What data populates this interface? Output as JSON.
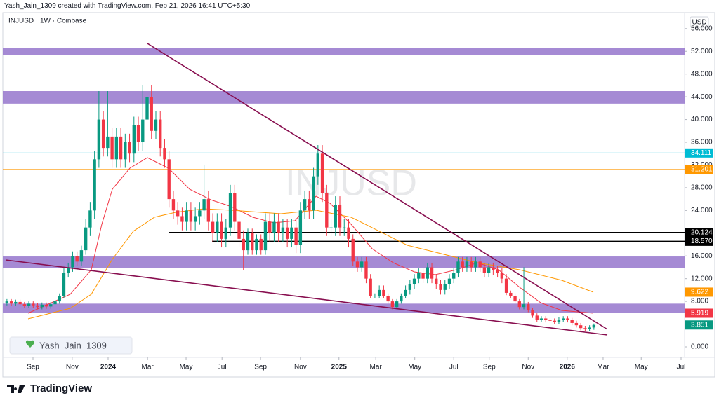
{
  "header": {
    "author_line": "Yash_Jain_1309 created with TradingView.com, Feb 21, 2026 16:41 UTC+5:30",
    "symbol": "INJUSD · 1W · Coinbase",
    "currency": "USD",
    "watermark": "INJUSD",
    "badge": "Yash_Jain_1309",
    "brand": "TradingView"
  },
  "chart_data": {
    "type": "candlestick",
    "open": [
      7.7,
      8.0,
      7.6,
      7.9,
      7.5,
      7.2,
      7.6,
      7.3,
      7.0,
      7.4,
      7.1,
      7.5,
      8.0,
      9.0,
      13,
      14,
      16,
      15,
      17,
      21,
      24,
      33,
      40,
      35,
      37,
      33,
      37,
      33,
      36,
      34,
      39,
      36,
      40,
      44,
      38,
      40,
      35,
      33,
      26,
      24,
      23,
      22,
      24,
      22,
      23,
      24,
      26,
      22,
      20,
      22,
      19,
      21,
      27,
      22,
      19,
      17,
      20,
      17,
      19,
      17,
      22,
      20,
      22,
      20,
      21,
      19,
      21,
      18,
      24,
      26,
      24,
      30,
      34,
      27,
      21,
      21,
      25,
      21,
      21,
      19,
      15,
      14,
      15,
      12,
      9,
      9,
      10,
      9,
      8,
      7,
      8,
      9,
      10,
      11,
      12,
      13,
      12,
      14,
      12,
      11,
      10,
      11,
      12,
      13,
      15,
      14,
      15,
      14,
      15,
      14,
      13,
      14,
      13.5,
      13,
      12,
      9.5,
      9,
      8,
      7,
      7.5,
      6.5,
      5.5,
      4.8,
      5.0,
      4.7,
      4.6,
      4.4,
      4.8,
      5.0,
      4.7,
      4.2,
      3.8,
      3.3,
      3.2,
      3.4
    ],
    "high": [
      8.4,
      8.4,
      8.3,
      8.3,
      7.9,
      8.0,
      8.0,
      7.7,
      7.8,
      7.8,
      7.9,
      8.4,
      9.4,
      13.8,
      14.8,
      16.8,
      16.8,
      17.8,
      22.5,
      25.5,
      34.5,
      45,
      41.5,
      45,
      38.5,
      38.5,
      38.5,
      37.5,
      37.5,
      40.5,
      40.5,
      46,
      53.5,
      46,
      41.5,
      41.5,
      36.5,
      34.5,
      27.5,
      25.5,
      24.5,
      25.5,
      25.5,
      24.5,
      25.5,
      32,
      27.5,
      23.5,
      23.5,
      23.5,
      22.5,
      28.5,
      28.5,
      23.5,
      20.5,
      20.8,
      20.8,
      19.8,
      19.8,
      23.5,
      23.5,
      23.5,
      23.5,
      22.5,
      22.5,
      22.5,
      22.5,
      25.5,
      27.5,
      27.5,
      31.5,
      35.5,
      35.5,
      28.5,
      22.5,
      26.5,
      26.5,
      22.5,
      22.5,
      19.8,
      15.8,
      15.8,
      15.8,
      12.8,
      9.4,
      10.8,
      10.8,
      9.4,
      8.4,
      8.4,
      9.4,
      10.8,
      11.8,
      12.8,
      13.8,
      13.8,
      14.8,
      14.8,
      12.8,
      11.8,
      11.8,
      12.8,
      13.8,
      15.8,
      15.8,
      15.8,
      15.8,
      15.8,
      15.8,
      14.8,
      14.8,
      14.8,
      14.3,
      13.8,
      12.8,
      9.9,
      9.4,
      8.4,
      14,
      7.9,
      6.9,
      5.9,
      5.4,
      5.4,
      5.1,
      5.0,
      5.2,
      5.4,
      5.4,
      5.1,
      4.6,
      4.2,
      3.7,
      3.8,
      4.1
    ],
    "low": [
      7.3,
      7.2,
      7.2,
      7.1,
      6.8,
      6.8,
      6.9,
      6.6,
      6.6,
      6.7,
      6.7,
      7.1,
      7.6,
      8.6,
      12.2,
      13.2,
      14.2,
      14.2,
      16.2,
      19.5,
      22.5,
      31.5,
      33.5,
      33.5,
      31.5,
      31.5,
      31.5,
      31.5,
      32.5,
      32.5,
      34.5,
      34.5,
      38.5,
      36.5,
      36.5,
      33.5,
      31.5,
      24.5,
      22.5,
      21.5,
      20.5,
      20.5,
      20.5,
      20.5,
      21.5,
      22.5,
      20.5,
      18.5,
      18.5,
      17.5,
      17.5,
      19.5,
      20.5,
      17.5,
      13.5,
      16.2,
      16.2,
      16.2,
      16.2,
      16.2,
      18.5,
      18.5,
      18.5,
      18.5,
      17.5,
      17.5,
      16.5,
      16.5,
      22.5,
      22.5,
      22.5,
      28.5,
      25.5,
      19.5,
      19.5,
      19.5,
      19.5,
      19.5,
      17.5,
      14.2,
      13.2,
      13.2,
      11.2,
      8.6,
      8.6,
      8.6,
      8.6,
      7.6,
      6.6,
      6.6,
      7.6,
      8.6,
      9.2,
      10.2,
      11.2,
      11.2,
      11.2,
      11.2,
      10.2,
      9.2,
      9.2,
      10.2,
      11.2,
      12.2,
      13.2,
      13.2,
      13.2,
      13.2,
      13.2,
      12.2,
      12.2,
      12.7,
      12.2,
      11.2,
      9.1,
      8.6,
      7.6,
      6.6,
      6.6,
      6.1,
      5.1,
      4.4,
      4.4,
      4.3,
      4.2,
      4.0,
      4.0,
      4.4,
      4.3,
      3.8,
      3.4,
      2.9,
      2.8,
      2.8,
      3.0
    ],
    "close": [
      8.0,
      7.6,
      7.9,
      7.5,
      7.2,
      7.6,
      7.3,
      7.0,
      7.4,
      7.1,
      7.5,
      8.0,
      9.0,
      13,
      14,
      16,
      15,
      17,
      21,
      24,
      33,
      40,
      35,
      37,
      33,
      37,
      33,
      36,
      34,
      39,
      36,
      40,
      44,
      38,
      40,
      35,
      33,
      26,
      24,
      23,
      22,
      24,
      22,
      23,
      24,
      26,
      22,
      20,
      22,
      19,
      21,
      27,
      22,
      19,
      17,
      20,
      17,
      19,
      17,
      22,
      20,
      22,
      20,
      21,
      19,
      21,
      18,
      24,
      26,
      24,
      30,
      34,
      27,
      21,
      21,
      25,
      21,
      21,
      19,
      15,
      14,
      15,
      12,
      9,
      9,
      10,
      9,
      8,
      7,
      8,
      9,
      10,
      11,
      12,
      13,
      12,
      14,
      12,
      11,
      10,
      11,
      12,
      13,
      15,
      14,
      15,
      14,
      15,
      14,
      13,
      14,
      13.5,
      13,
      12,
      9.5,
      9,
      8,
      7,
      7.5,
      6.5,
      5.5,
      4.8,
      5.0,
      4.7,
      4.6,
      4.4,
      4.8,
      5.0,
      4.7,
      4.2,
      3.8,
      3.3,
      3.2,
      3.4,
      3.851
    ],
    "up_color": "#089981",
    "down_color": "#f23645",
    "xlim": [
      -0.3,
      154.7
    ],
    "ylim": [
      -1.85,
      57.7
    ],
    "xticks": [
      {
        "value": 5.95,
        "label": "Sep"
      },
      {
        "value": 14.9,
        "label": "Nov"
      },
      {
        "value": 23.1,
        "label": "2024"
      },
      {
        "value": 32.1,
        "label": "Mar"
      },
      {
        "value": 40.9,
        "label": "May"
      },
      {
        "value": 49.1,
        "label": "Jul"
      },
      {
        "value": 57.9,
        "label": "Sep"
      },
      {
        "value": 67.0,
        "label": "Nov"
      },
      {
        "value": 75.8,
        "label": "2025"
      },
      {
        "value": 84.2,
        "label": "Mar"
      },
      {
        "value": 93.1,
        "label": "May"
      },
      {
        "value": 102.0,
        "label": "Jul"
      },
      {
        "value": 110.1,
        "label": "Sep"
      },
      {
        "value": 119.0,
        "label": "Nov"
      },
      {
        "value": 127.9,
        "label": "2026"
      },
      {
        "value": 136.1,
        "label": "Mar"
      },
      {
        "value": 144.8,
        "label": "May"
      },
      {
        "value": 153.9,
        "label": "Jul"
      }
    ],
    "yticks": [
      {
        "value": 0,
        "label": "0.000"
      },
      {
        "value": 8,
        "label": "8.000"
      },
      {
        "value": 12,
        "label": "12.000"
      },
      {
        "value": 16,
        "label": "16.000"
      },
      {
        "value": 24,
        "label": "24.000"
      },
      {
        "value": 28,
        "label": "28.000"
      },
      {
        "value": 32,
        "label": "32.000"
      },
      {
        "value": 36,
        "label": "36.000"
      },
      {
        "value": 40,
        "label": "40.000"
      },
      {
        "value": 44,
        "label": "44.000"
      },
      {
        "value": 48,
        "label": "48.000"
      },
      {
        "value": 52,
        "label": "52.000"
      },
      {
        "value": 56,
        "label": "56.000"
      }
    ],
    "zone_color": "#9575cd",
    "zones": [
      {
        "low": 51.3,
        "high": 52.6
      },
      {
        "low": 42.8,
        "high": 45.0
      },
      {
        "low": 13.9,
        "high": 15.9
      },
      {
        "low": 6.0,
        "high": 7.6
      }
    ],
    "levels": [
      {
        "value": 34.111,
        "label": "34.111",
        "color": "#00bcd4"
      },
      {
        "value": 31.201,
        "label": "31.201",
        "color": "#ff9800"
      },
      {
        "value": 20.124,
        "label": "20.124",
        "color": "#000000",
        "start": 37.05
      },
      {
        "value": 18.57,
        "label": "18.570",
        "color": "#000000",
        "start": 46.83
      }
    ],
    "trendline_color": "#880e4f",
    "trendlines": [
      {
        "x": [
          32.08,
          137.07
        ],
        "values": [
          53.39,
          3.08
        ]
      },
      {
        "x": [
          -0.3,
          137.07
        ],
        "values": [
          15.29,
          2.1
        ]
      }
    ],
    "moving_averages": [
      {
        "color": "#f23645",
        "x": [
          4.83,
          14.45,
          19.26,
          21.66,
          24.06,
          28.07,
          32.08,
          36.89,
          41.7,
          46.51,
          51.32,
          56.13,
          60.94,
          65.75,
          70.56,
          73.76,
          78.57,
          83.38,
          88.19,
          93.0,
          97.8,
          102.61,
          107.42,
          112.23,
          117.03,
          121.84,
          126.65,
          133.87
        ],
        "values": [
          5.92,
          9.25,
          13.56,
          21.58,
          27.74,
          31.44,
          33.29,
          31.44,
          27.74,
          25.89,
          24.66,
          22.81,
          21.82,
          22.19,
          26.51,
          25.28,
          21.58,
          17.26,
          14.8,
          13.19,
          12.7,
          13.56,
          14.8,
          13.56,
          10.48,
          7.77,
          6.41,
          5.919
        ]
      },
      {
        "color": "#ff9800",
        "x": [
          4.83,
          14.45,
          19.26,
          24.06,
          28.87,
          33.68,
          38.49,
          44.9,
          51.32,
          62.53,
          70.56,
          78.57,
          84.98,
          91.39,
          97.8,
          107.42,
          117.03,
          126.65,
          133.87
        ],
        "values": [
          4.93,
          6.78,
          9.25,
          15.41,
          20.35,
          22.81,
          23.67,
          24.29,
          24.04,
          23.43,
          24.04,
          22.81,
          20.35,
          17.88,
          16.65,
          14.8,
          13.56,
          11.71,
          9.622
        ]
      }
    ]
  }
}
